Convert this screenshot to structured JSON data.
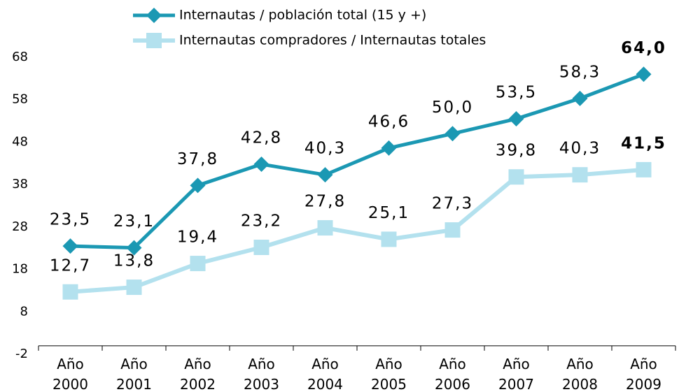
{
  "chart_data": {
    "type": "line",
    "categories": [
      "Año 2000",
      "Año 2001",
      "Año 2002",
      "Año 2003",
      "Año 2004",
      "Año 2005",
      "Año 2006",
      "Año 2007",
      "Año 2008",
      "Año 2009"
    ],
    "series": [
      {
        "name": "Internautas / población total (15 y +)",
        "color": "#1b98b3",
        "marker": "diamond",
        "values": [
          23.5,
          23.1,
          37.8,
          42.8,
          40.3,
          46.6,
          50.0,
          53.5,
          58.3,
          64.0
        ],
        "value_labels": [
          "23,5",
          "23,1",
          "37,8",
          "42,8",
          "40,3",
          "46,6",
          "50,0",
          "53,5",
          "58,3",
          "64,0"
        ]
      },
      {
        "name": "Internautas compradores / Internautas totales",
        "color": "#b3e1ee",
        "marker": "square",
        "values": [
          12.7,
          13.8,
          19.4,
          23.2,
          27.8,
          25.1,
          27.3,
          39.8,
          40.3,
          41.5
        ],
        "value_labels": [
          "12,7",
          "13,8",
          "19,4",
          "23,2",
          "27,8",
          "25,1",
          "27,3",
          "39,8",
          "40,3",
          "41,5"
        ]
      }
    ],
    "ylim": [
      -2,
      68
    ],
    "yticks": [
      -2,
      8,
      18,
      28,
      38,
      48,
      58,
      68
    ],
    "grid": false,
    "legend": "top"
  }
}
